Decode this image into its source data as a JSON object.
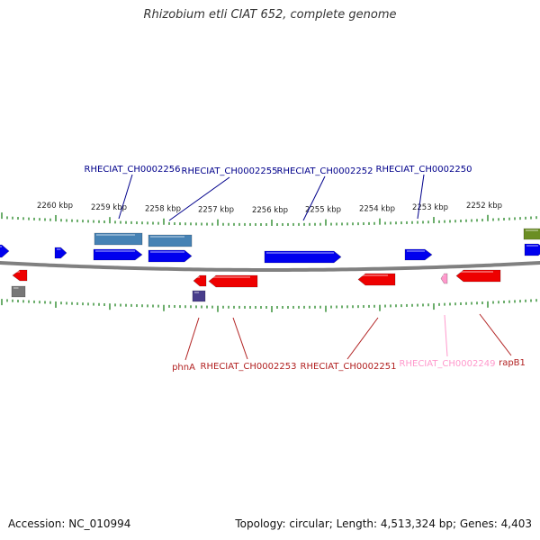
{
  "title": "Rhizobium etli CIAT 652, complete genome",
  "footer": {
    "accession": "Accession: NC_010994",
    "summary": "Topology: circular; Length: 4,513,324 bp; Genes: 4,403"
  },
  "colors": {
    "backbone": "#808080",
    "tick": "#2e8b2e",
    "forward_gene": "#0000ee",
    "forward_gene_alt": "#4682b4",
    "reverse_gene": "#ee0000",
    "pseudo_gene": "#ff99cc",
    "other_gene_olive": "#6b8e23",
    "other_gene_gray": "#777777",
    "other_gene_purple": "#483d8b",
    "label_forward": "#00008b",
    "label_reverse": "#b22222",
    "label_pseudo": "#ff99cc",
    "ruler_text": "#222222"
  },
  "ruler": [
    {
      "label": "2260 kbp"
    },
    {
      "label": "2259 kbp"
    },
    {
      "label": "2258 kbp"
    },
    {
      "label": "2257 kbp"
    },
    {
      "label": "2256 kbp"
    },
    {
      "label": "2255 kbp"
    },
    {
      "label": "2254 kbp"
    },
    {
      "label": "2253 kbp"
    },
    {
      "label": "2252 kbp"
    }
  ],
  "forward_labels": [
    {
      "text": "RHECIAT_CH0002256"
    },
    {
      "text": "RHECIAT_CH0002255"
    },
    {
      "text": "RHECIAT_CH0002252"
    },
    {
      "text": "RHECIAT_CH0002250"
    }
  ],
  "reverse_labels": [
    {
      "text": "phnA"
    },
    {
      "text": "RHECIAT_CH0002253"
    },
    {
      "text": "RHECIAT_CH0002251"
    },
    {
      "text": "RHECIAT_CH0002249"
    },
    {
      "text": "rapB1"
    }
  ]
}
